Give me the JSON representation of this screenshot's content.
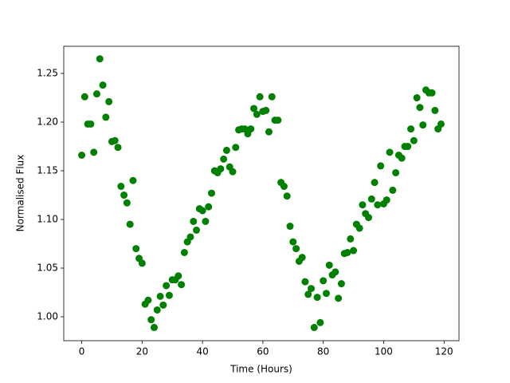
{
  "chart_data": {
    "type": "scatter",
    "xlabel": "Time (Hours)",
    "ylabel": "Normalised Flux",
    "color": "#008000",
    "x": [
      0,
      1,
      2,
      3,
      4,
      5,
      6,
      7,
      8,
      9,
      10,
      11,
      12,
      13,
      14,
      15,
      16,
      17,
      18,
      19,
      20,
      21,
      22,
      23,
      24,
      25,
      26,
      27,
      28,
      29,
      30,
      31,
      32,
      33,
      34,
      35,
      36,
      37,
      38,
      39,
      40,
      41,
      42,
      43,
      44,
      45,
      46,
      47,
      48,
      49,
      50,
      51,
      52,
      53,
      54,
      55,
      56,
      57,
      58,
      59,
      60,
      61,
      62,
      63,
      64,
      65,
      66,
      67,
      68,
      69,
      70,
      71,
      72,
      73,
      74,
      75,
      76,
      77,
      78,
      79,
      80,
      81,
      82,
      83,
      84,
      85,
      86,
      87,
      88,
      89,
      90,
      91,
      92,
      93,
      94,
      95,
      96,
      97,
      98,
      99,
      100,
      101,
      102,
      103,
      104,
      105,
      106,
      107,
      108,
      109,
      110,
      111,
      112,
      113,
      114,
      115,
      116,
      117,
      118,
      119
    ],
    "values": [
      1.166,
      1.226,
      1.198,
      1.198,
      1.169,
      1.229,
      1.265,
      1.238,
      1.205,
      1.221,
      1.18,
      1.181,
      1.174,
      1.134,
      1.125,
      1.117,
      1.095,
      1.14,
      1.07,
      1.06,
      1.055,
      1.013,
      1.017,
      0.997,
      0.989,
      1.007,
      1.021,
      1.012,
      1.032,
      1.022,
      1.038,
      1.038,
      1.042,
      1.033,
      1.066,
      1.077,
      1.082,
      1.098,
      1.089,
      1.111,
      1.109,
      1.098,
      1.113,
      1.127,
      1.15,
      1.148,
      1.152,
      1.162,
      1.171,
      1.154,
      1.149,
      1.174,
      1.192,
      1.193,
      1.193,
      1.188,
      1.193,
      1.214,
      1.208,
      1.226,
      1.211,
      1.212,
      1.19,
      1.226,
      1.202,
      1.202,
      1.138,
      1.134,
      1.124,
      1.093,
      1.077,
      1.07,
      1.057,
      1.061,
      1.036,
      1.023,
      1.029,
      0.989,
      1.02,
      0.994,
      1.037,
      1.024,
      1.053,
      1.043,
      1.046,
      1.019,
      1.034,
      1.065,
      1.066,
      1.08,
      1.068,
      1.095,
      1.091,
      1.115,
      1.106,
      1.102,
      1.121,
      1.138,
      1.115,
      1.155,
      1.116,
      1.12,
      1.169,
      1.13,
      1.148,
      1.166,
      1.163,
      1.175,
      1.175,
      1.193,
      1.181,
      1.225,
      1.215,
      1.197,
      1.233,
      1.23,
      1.23,
      1.212,
      1.193,
      1.198
    ],
    "xlim": [
      -5.95,
      124.95
    ],
    "ylim": [
      0.9754,
      1.2779
    ],
    "xticks": [
      0,
      20,
      40,
      60,
      80,
      100,
      120
    ],
    "yticks": [
      {
        "value": 1.0,
        "label": "1.00"
      },
      1.05,
      {
        "value": 1.1,
        "label": "1.10"
      },
      1.15,
      {
        "value": 1.2,
        "label": "1.20"
      },
      1.25
    ]
  }
}
